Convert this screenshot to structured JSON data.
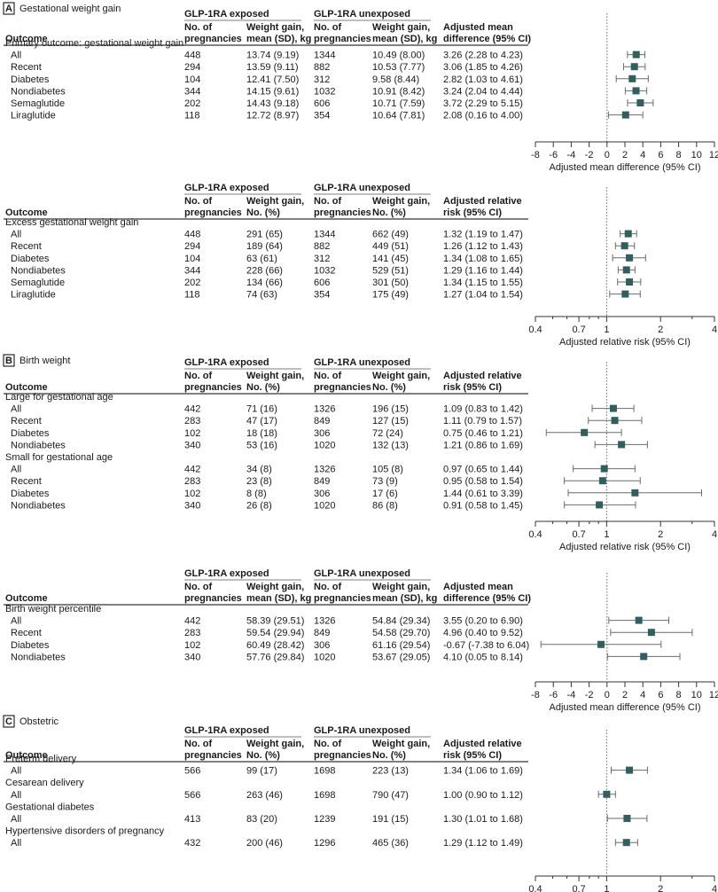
{
  "column_headers": {
    "outcome": "Outcome",
    "exposed_group": "GLP-1RA exposed",
    "unexposed_group": "GLP-1RA unexposed",
    "pregnancies": [
      "No. of",
      "pregnancies"
    ],
    "mean_gain": [
      "Weight gain,",
      "mean (SD), kg"
    ],
    "count_gain": [
      "Weight gain,",
      "No. (%)"
    ],
    "adj_mean": [
      "Adjusted mean",
      "difference (95% CI)"
    ],
    "adj_rr": [
      "Adjusted relative",
      "risk (95% CI)"
    ]
  },
  "panels": [
    {
      "letter": "A",
      "title": "Gestational weight gain"
    },
    {
      "letter": "B",
      "title": "Birth weight"
    },
    {
      "letter": "C",
      "title": "Obstetric"
    }
  ],
  "chart_data": [
    {
      "type": "forest",
      "scale": "linear",
      "xlim": [
        -8,
        12
      ],
      "ticks": [
        "-8",
        "-6",
        "-4",
        "-2",
        "0",
        "2",
        "4",
        "6",
        "8",
        "10",
        "12"
      ],
      "tick_values": [
        -8,
        -6,
        -4,
        -2,
        0,
        2,
        4,
        6,
        8,
        10,
        12
      ],
      "ref": 0,
      "xlabel": "Adjusted mean difference (95% CI)",
      "effect_header": "mean",
      "gain_header": "mean",
      "groups": [
        {
          "label": "Primary outcome: gestational weight gain",
          "rows": [
            {
              "label": "All",
              "exp_n": "448",
              "exp_val": "13.74 (9.19)",
              "unexp_n": "1344",
              "unexp_val": "10.49 (8.00)",
              "effect": "3.26 (2.28 to 4.23)",
              "est": 3.26,
              "lo": 2.28,
              "hi": 4.23
            },
            {
              "label": "Recent",
              "exp_n": "294",
              "exp_val": "13.59 (9.11)",
              "unexp_n": "882",
              "unexp_val": "10.53 (7.77)",
              "effect": "3.06 (1.85 to 4.26)",
              "est": 3.06,
              "lo": 1.85,
              "hi": 4.26
            },
            {
              "label": "Diabetes",
              "exp_n": "104",
              "exp_val": "12.41 (7.50)",
              "unexp_n": "312",
              "unexp_val": "9.58 (8.44)",
              "effect": "2.82 (1.03 to 4.61)",
              "est": 2.82,
              "lo": 1.03,
              "hi": 4.61
            },
            {
              "label": "Nondiabetes",
              "exp_n": "344",
              "exp_val": "14.15 (9.61)",
              "unexp_n": "1032",
              "unexp_val": "10.91 (8.42)",
              "effect": "3.24 (2.04 to 4.44)",
              "est": 3.24,
              "lo": 2.04,
              "hi": 4.44
            },
            {
              "label": "Semaglutide",
              "exp_n": "202",
              "exp_val": "14.43 (9.18)",
              "unexp_n": "606",
              "unexp_val": "10.71 (7.59)",
              "effect": "3.72 (2.29 to 5.15)",
              "est": 3.72,
              "lo": 2.29,
              "hi": 5.15
            },
            {
              "label": "Liraglutide",
              "exp_n": "118",
              "exp_val": "12.72 (8.97)",
              "unexp_n": "354",
              "unexp_val": "10.64 (7.81)",
              "effect": "2.08 (0.16 to 4.00)",
              "est": 2.08,
              "lo": 0.16,
              "hi": 4.0
            }
          ]
        }
      ]
    },
    {
      "type": "forest",
      "scale": "log",
      "xlim": [
        0.4,
        4
      ],
      "ticks": [
        "0.4",
        "0.7",
        "1",
        "2",
        "4"
      ],
      "tick_values": [
        0.4,
        0.7,
        1,
        2,
        4
      ],
      "ref": 1,
      "xlabel": "Adjusted relative risk (95% CI)",
      "effect_header": "rr",
      "gain_header": "count",
      "groups": [
        {
          "label": "Excess gestational weight gain",
          "rows": [
            {
              "label": "All",
              "exp_n": "448",
              "exp_val": "291 (65)",
              "unexp_n": "1344",
              "unexp_val": "662 (49)",
              "effect": "1.32 (1.19 to 1.47)",
              "est": 1.32,
              "lo": 1.19,
              "hi": 1.47
            },
            {
              "label": "Recent",
              "exp_n": "294",
              "exp_val": "189 (64)",
              "unexp_n": "882",
              "unexp_val": "449 (51)",
              "effect": "1.26 (1.12 to 1.43)",
              "est": 1.26,
              "lo": 1.12,
              "hi": 1.43
            },
            {
              "label": "Diabetes",
              "exp_n": "104",
              "exp_val": "63 (61)",
              "unexp_n": "312",
              "unexp_val": "141 (45)",
              "effect": "1.34 (1.08 to 1.65)",
              "est": 1.34,
              "lo": 1.08,
              "hi": 1.65
            },
            {
              "label": "Nondiabetes",
              "exp_n": "344",
              "exp_val": "228 (66)",
              "unexp_n": "1032",
              "unexp_val": "529 (51)",
              "effect": "1.29 (1.16 to 1.44)",
              "est": 1.29,
              "lo": 1.16,
              "hi": 1.44
            },
            {
              "label": "Semaglutide",
              "exp_n": "202",
              "exp_val": "134 (66)",
              "unexp_n": "606",
              "unexp_val": "301 (50)",
              "effect": "1.34 (1.15 to 1.55)",
              "est": 1.34,
              "lo": 1.15,
              "hi": 1.55
            },
            {
              "label": "Liraglutide",
              "exp_n": "118",
              "exp_val": "74 (63)",
              "unexp_n": "354",
              "unexp_val": "175 (49)",
              "effect": "1.27 (1.04 to 1.54)",
              "est": 1.27,
              "lo": 1.04,
              "hi": 1.54
            }
          ]
        }
      ]
    },
    {
      "type": "forest",
      "scale": "log",
      "xlim": [
        0.4,
        4
      ],
      "ticks": [
        "0.4",
        "0.7",
        "1",
        "2",
        "4"
      ],
      "tick_values": [
        0.4,
        0.7,
        1,
        2,
        4
      ],
      "ref": 1,
      "xlabel": "Adjusted relative risk (95% CI)",
      "effect_header": "rr",
      "gain_header": "count",
      "groups": [
        {
          "label": "Large for gestational age",
          "rows": [
            {
              "label": "All",
              "exp_n": "442",
              "exp_val": "71 (16)",
              "unexp_n": "1326",
              "unexp_val": "196 (15)",
              "effect": "1.09 (0.83 to 1.42)",
              "est": 1.09,
              "lo": 0.83,
              "hi": 1.42
            },
            {
              "label": "Recent",
              "exp_n": "283",
              "exp_val": "47 (17)",
              "unexp_n": "849",
              "unexp_val": "127 (15)",
              "effect": "1.11 (0.79 to 1.57)",
              "est": 1.11,
              "lo": 0.79,
              "hi": 1.57
            },
            {
              "label": "Diabetes",
              "exp_n": "102",
              "exp_val": "18 (18)",
              "unexp_n": "306",
              "unexp_val": "72 (24)",
              "effect": "0.75 (0.46 to 1.21)",
              "est": 0.75,
              "lo": 0.46,
              "hi": 1.21
            },
            {
              "label": "Nondiabetes",
              "exp_n": "340",
              "exp_val": "53 (16)",
              "unexp_n": "1020",
              "unexp_val": "132 (13)",
              "effect": "1.21 (0.86 to 1.69)",
              "est": 1.21,
              "lo": 0.86,
              "hi": 1.69
            }
          ]
        },
        {
          "label": "Small for gestational age",
          "rows": [
            {
              "label": "All",
              "exp_n": "442",
              "exp_val": "34 (8)",
              "unexp_n": "1326",
              "unexp_val": "105 (8)",
              "effect": "0.97 (0.65 to 1.44)",
              "est": 0.97,
              "lo": 0.65,
              "hi": 1.44
            },
            {
              "label": "Recent",
              "exp_n": "283",
              "exp_val": "23 (8)",
              "unexp_n": "849",
              "unexp_val": "73 (9)",
              "effect": "0.95 (0.58 to 1.54)",
              "est": 0.95,
              "lo": 0.58,
              "hi": 1.54
            },
            {
              "label": "Diabetes",
              "exp_n": "102",
              "exp_val": "8 (8)",
              "unexp_n": "306",
              "unexp_val": "17 (6)",
              "effect": "1.44 (0.61 to 3.39)",
              "est": 1.44,
              "lo": 0.61,
              "hi": 3.39
            },
            {
              "label": "Nondiabetes",
              "exp_n": "340",
              "exp_val": "26 (8)",
              "unexp_n": "1020",
              "unexp_val": "86 (8)",
              "effect": "0.91 (0.58 to 1.45)",
              "est": 0.91,
              "lo": 0.58,
              "hi": 1.45
            }
          ]
        }
      ]
    },
    {
      "type": "forest",
      "scale": "linear",
      "xlim": [
        -8,
        12
      ],
      "ticks": [
        "-8",
        "-6",
        "-4",
        "-2",
        "0",
        "2",
        "4",
        "6",
        "8",
        "10",
        "12"
      ],
      "tick_values": [
        -8,
        -6,
        -4,
        -2,
        0,
        2,
        4,
        6,
        8,
        10,
        12
      ],
      "ref": 0,
      "xlabel": "Adjusted mean difference (95% CI)",
      "effect_header": "mean",
      "gain_header": "mean",
      "groups": [
        {
          "label": "Birth weight percentile",
          "rows": [
            {
              "label": "All",
              "exp_n": "442",
              "exp_val": "58.39 (29.51)",
              "unexp_n": "1326",
              "unexp_val": "54.84 (29.34)",
              "effect": "3.55 (0.20 to 6.90)",
              "est": 3.55,
              "lo": 0.2,
              "hi": 6.9
            },
            {
              "label": "Recent",
              "exp_n": "283",
              "exp_val": "59.54 (29.94)",
              "unexp_n": "849",
              "unexp_val": "54.58 (29.70)",
              "effect": "4.96 (0.40 to 9.52)",
              "est": 4.96,
              "lo": 0.4,
              "hi": 9.52
            },
            {
              "label": "Diabetes",
              "exp_n": "102",
              "exp_val": "60.49 (28.42)",
              "unexp_n": "306",
              "unexp_val": "61.16 (29.54)",
              "effect": "-0.67 (-7.38 to 6.04)",
              "est": -0.67,
              "lo": -7.38,
              "hi": 6.04
            },
            {
              "label": "Nondiabetes",
              "exp_n": "340",
              "exp_val": "57.76 (29.84)",
              "unexp_n": "1020",
              "unexp_val": "53.67 (29.05)",
              "effect": "4.10 (0.05 to 8.14)",
              "est": 4.1,
              "lo": 0.05,
              "hi": 8.14
            }
          ]
        }
      ]
    },
    {
      "type": "forest",
      "scale": "log",
      "xlim": [
        0.4,
        4
      ],
      "ticks": [
        "0.4",
        "0.7",
        "1",
        "2",
        "4"
      ],
      "tick_values": [
        0.4,
        0.7,
        1,
        2,
        4
      ],
      "ref": 1,
      "xlabel": "Adjusted relative risk (95% CI)",
      "effect_header": "rr",
      "gain_header": "count",
      "groups": [
        {
          "label": "Preterm delivery",
          "rows": [
            {
              "label": "All",
              "exp_n": "566",
              "exp_val": "99 (17)",
              "unexp_n": "1698",
              "unexp_val": "223 (13)",
              "effect": "1.34 (1.06 to 1.69)",
              "est": 1.34,
              "lo": 1.06,
              "hi": 1.69
            }
          ]
        },
        {
          "label": "Cesarean delivery",
          "rows": [
            {
              "label": "All",
              "exp_n": "566",
              "exp_val": "263 (46)",
              "unexp_n": "1698",
              "unexp_val": "790 (47)",
              "effect": "1.00 (0.90 to 1.12)",
              "est": 1.0,
              "lo": 0.9,
              "hi": 1.12
            }
          ]
        },
        {
          "label": "Gestational diabetes",
          "rows": [
            {
              "label": "All",
              "exp_n": "413",
              "exp_val": "83 (20)",
              "unexp_n": "1239",
              "unexp_val": "191 (15)",
              "effect": "1.30 (1.01 to 1.68)",
              "est": 1.3,
              "lo": 1.01,
              "hi": 1.68
            }
          ]
        },
        {
          "label": "Hypertensive disorders of pregnancy",
          "rows": [
            {
              "label": "All",
              "exp_n": "432",
              "exp_val": "200 (46)",
              "unexp_n": "1296",
              "unexp_val": "465 (36)",
              "effect": "1.29 (1.12 to 1.49)",
              "est": 1.29,
              "lo": 1.12,
              "hi": 1.49
            }
          ]
        }
      ]
    }
  ]
}
